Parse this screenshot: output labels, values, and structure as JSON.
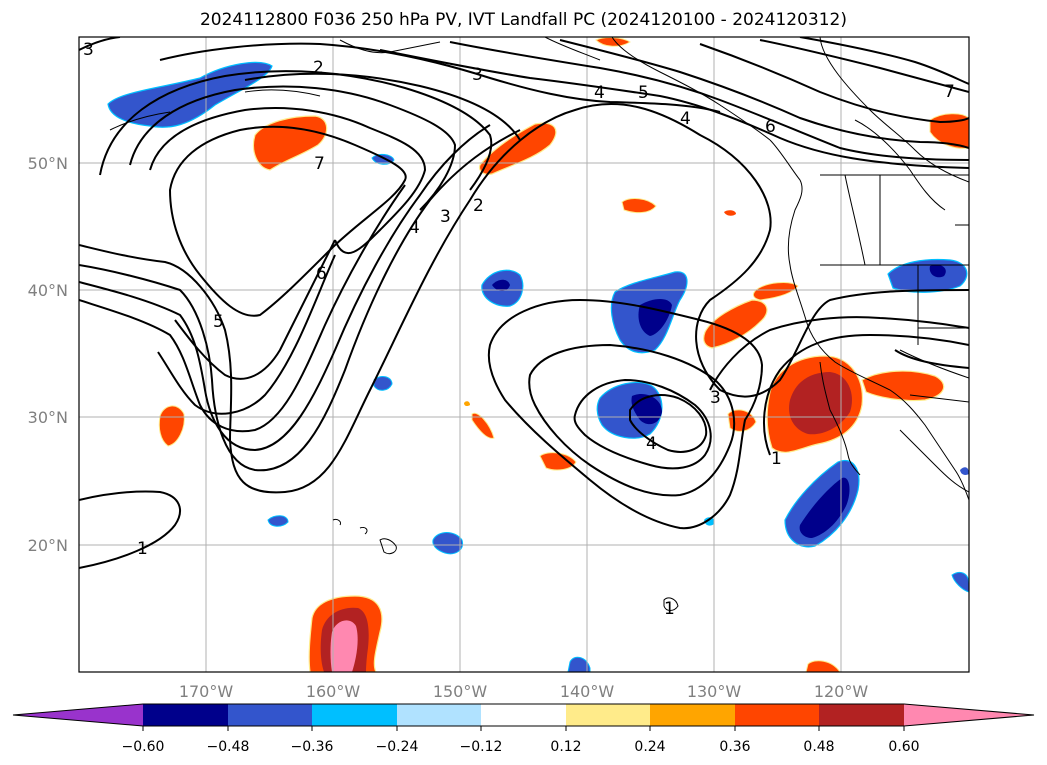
{
  "title": "2024112800 F036 250 hPa PV, IVT Landfall PC (2024120100 - 2024120312)",
  "lat_ticks": [
    "50°N",
    "40°N",
    "30°N",
    "20°N"
  ],
  "lon_ticks": [
    "170°W",
    "160°W",
    "150°W",
    "140°W",
    "130°W",
    "120°W"
  ],
  "colorbar": {
    "colors": [
      "#9933cc",
      "#00008b",
      "#3355cc",
      "#00bfff",
      "#b0e2ff",
      "#ffffff",
      "#ffeb8a",
      "#ffa500",
      "#ff4500",
      "#b22222",
      "#ff88b0"
    ],
    "labels": [
      "−0.60",
      "−0.48",
      "−0.36",
      "−0.24",
      "−0.12",
      "0.12",
      "0.24",
      "0.36",
      "0.48",
      "0.60"
    ]
  },
  "contour_labels": [
    "3",
    "2",
    "3",
    "4",
    "5",
    "4",
    "6",
    "7",
    "7",
    "4",
    "3",
    "2",
    "6",
    "5",
    "3",
    "4",
    "1",
    "1",
    "1"
  ]
}
